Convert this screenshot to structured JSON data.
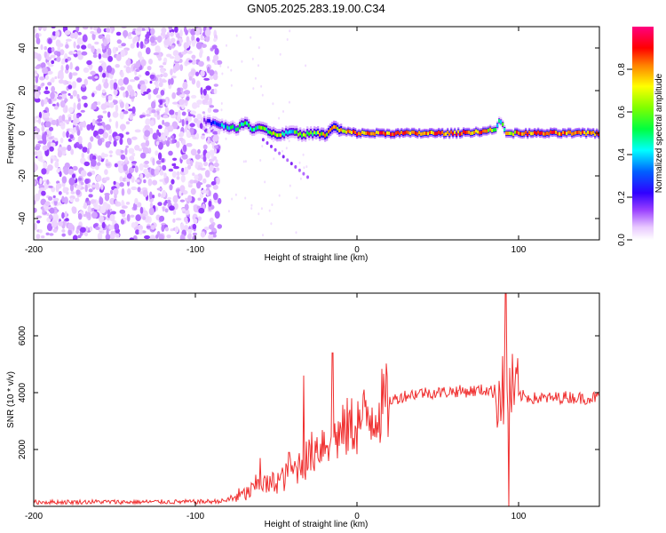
{
  "title": "GN05.2025.283.19.00.C34",
  "chart_data": [
    {
      "type": "heatmap",
      "name": "spectrogram",
      "xlabel": "Height of straight line (km)",
      "ylabel": "Frequency (Hz)",
      "xlim": [
        -200,
        150
      ],
      "ylim": [
        -50,
        50
      ],
      "xticks": [
        -200,
        -100,
        0,
        100
      ],
      "xtick_labels": [
        "-200",
        "-100",
        "0",
        "100"
      ],
      "yticks": [
        -40,
        -20,
        0,
        20,
        40
      ],
      "ytick_labels": [
        "-40",
        "-20",
        "0",
        "20",
        "40"
      ],
      "colorbar": {
        "label": "Normalized spectral amplitude",
        "range": [
          0,
          1
        ],
        "ticks": [
          0,
          0.2,
          0.4,
          0.6,
          0.8
        ],
        "tick_labels": [
          "0.0",
          "0.2",
          "0.4",
          "0.6",
          "0.8"
        ],
        "colors": [
          "#ffffff",
          "#e8c8ff",
          "#9a40ff",
          "#5a00e0",
          "#0000ff",
          "#00ffff",
          "#00ff00",
          "#ffff00",
          "#ff8000",
          "#ff0000",
          "#ff0080"
        ]
      },
      "noise_region_x": [
        -200,
        -85
      ],
      "ridge": {
        "x": [
          -95,
          -90,
          -85,
          -80,
          -75,
          -70,
          -65,
          -60,
          -55,
          -50,
          -45,
          -40,
          -35,
          -30,
          -25,
          -20,
          -15,
          -10,
          0,
          20,
          40,
          60,
          80,
          85,
          88,
          92,
          100,
          120,
          150
        ],
        "freq": [
          6,
          5,
          4,
          3,
          2,
          5,
          2,
          3,
          1,
          -1,
          0,
          1,
          -1,
          0,
          0,
          -1,
          3,
          1,
          0,
          0,
          0,
          0,
          1,
          2,
          6,
          0,
          0,
          0,
          0
        ],
        "amplitude": [
          0.3,
          0.4,
          0.5,
          0.6,
          0.55,
          0.7,
          0.6,
          0.65,
          0.7,
          0.75,
          0.65,
          0.6,
          0.7,
          0.6,
          0.75,
          0.8,
          0.85,
          0.8,
          0.9,
          0.9,
          0.92,
          0.9,
          0.88,
          0.7,
          0.5,
          0.8,
          0.9,
          0.92,
          0.92
        ]
      }
    },
    {
      "type": "line",
      "name": "snr",
      "xlabel": "Height of straight line (km)",
      "ylabel": "SNR (10 * v/v)",
      "xlim": [
        -200,
        150
      ],
      "ylim": [
        0,
        7500
      ],
      "xticks": [
        -200,
        -100,
        0,
        100
      ],
      "xtick_labels": [
        "-200",
        "-100",
        "0",
        "100"
      ],
      "yticks": [
        2000,
        4000,
        6000
      ],
      "ytick_labels": [
        "2000",
        "4000",
        "6000"
      ],
      "color": "#f03030",
      "series": [
        {
          "name": "SNR",
          "x": [
            -200,
            -180,
            -160,
            -140,
            -120,
            -100,
            -90,
            -80,
            -75,
            -70,
            -65,
            -60,
            -55,
            -50,
            -45,
            -40,
            -35,
            -30,
            -25,
            -20,
            -15,
            -10,
            -5,
            0,
            10,
            20,
            30,
            40,
            50,
            60,
            70,
            80,
            85,
            90,
            93,
            95,
            97,
            100,
            110,
            120,
            130,
            140,
            150
          ],
          "y": [
            150,
            150,
            160,
            150,
            160,
            160,
            170,
            200,
            350,
            400,
            550,
            900,
            700,
            900,
            1000,
            1200,
            1500,
            1700,
            2100,
            2300,
            2500,
            2500,
            2800,
            2900,
            3300,
            3700,
            3900,
            4000,
            4000,
            4050,
            4050,
            4100,
            4000,
            4000,
            4000,
            4100,
            4000,
            3900,
            3800,
            3800,
            3850,
            3800,
            3850
          ]
        }
      ],
      "spikes": [
        {
          "x": -60,
          "y": 1700
        },
        {
          "x": -42,
          "y": 1900
        },
        {
          "x": -33,
          "y": 4600
        },
        {
          "x": -15,
          "y": 5400
        },
        {
          "x": 92,
          "y": 7500
        },
        {
          "x": 94,
          "y": 0
        }
      ]
    }
  ]
}
